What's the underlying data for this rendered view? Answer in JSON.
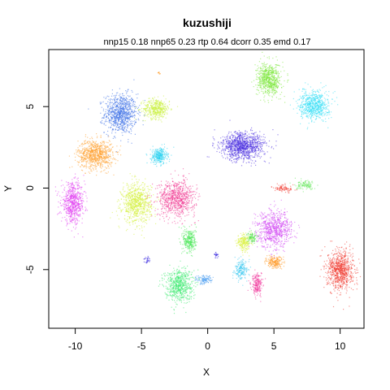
{
  "chart_data": {
    "type": "scatter",
    "title": "kuzushiji",
    "subtitle": "nnp15 0.18 nnp65 0.23 rtp 0.64 dcorr 0.35 emd 0.17",
    "xlabel": "X",
    "ylabel": "Y",
    "xlim": [
      -12,
      11.8
    ],
    "ylim": [
      -8.6,
      8.5
    ],
    "xticks": [
      -10,
      -5,
      0,
      5,
      10
    ],
    "yticks": [
      -5,
      0,
      5
    ],
    "grid": false,
    "legend": "none",
    "clusters": [
      {
        "color": "#3D6FE6",
        "center": [
          -6.6,
          4.6
        ],
        "spread": [
          1.1,
          1.1
        ],
        "n": 900
      },
      {
        "color": "#C8F03C",
        "center": [
          -3.9,
          4.9
        ],
        "spread": [
          0.9,
          0.55
        ],
        "n": 450
      },
      {
        "color": "#FFA030",
        "center": [
          -8.5,
          2.1
        ],
        "spread": [
          1.2,
          0.8
        ],
        "n": 850
      },
      {
        "color": "#28D2F0",
        "center": [
          -3.7,
          2.0
        ],
        "spread": [
          0.55,
          0.45
        ],
        "n": 300
      },
      {
        "color": "#E038F0",
        "center": [
          -10.2,
          -0.9
        ],
        "spread": [
          0.8,
          1.1
        ],
        "n": 650
      },
      {
        "color": "#D4F03A",
        "center": [
          -5.4,
          -0.9
        ],
        "spread": [
          1.0,
          1.1
        ],
        "n": 800
      },
      {
        "color": "#F03590",
        "center": [
          -2.4,
          -0.6
        ],
        "spread": [
          1.3,
          1.0
        ],
        "n": 800
      },
      {
        "color": "#48E858",
        "center": [
          -1.4,
          -3.2
        ],
        "spread": [
          0.45,
          0.7
        ],
        "n": 300
      },
      {
        "color": "#3BEA6E",
        "center": [
          -2.2,
          -5.9
        ],
        "spread": [
          0.95,
          0.9
        ],
        "n": 650
      },
      {
        "color": "#4B9DF0",
        "center": [
          -0.3,
          -5.6
        ],
        "spread": [
          0.6,
          0.25
        ],
        "n": 120
      },
      {
        "color": "#7CE83A",
        "center": [
          4.6,
          6.7
        ],
        "spread": [
          0.8,
          0.9
        ],
        "n": 700
      },
      {
        "color": "#33DEF5",
        "center": [
          8.0,
          5.1
        ],
        "spread": [
          1.0,
          0.8
        ],
        "n": 700
      },
      {
        "color": "#4A2DE0",
        "center": [
          2.6,
          2.6
        ],
        "spread": [
          1.5,
          0.75
        ],
        "n": 1100
      },
      {
        "color": "#66E85C",
        "center": [
          7.4,
          0.2
        ],
        "spread": [
          0.7,
          0.25
        ],
        "n": 120
      },
      {
        "color": "#D040F2",
        "center": [
          5.0,
          -2.5
        ],
        "spread": [
          1.2,
          1.0
        ],
        "n": 750
      },
      {
        "color": "#F03A30",
        "center": [
          10.0,
          -5.0
        ],
        "spread": [
          0.9,
          1.1
        ],
        "n": 850
      },
      {
        "color": "#D8F03A",
        "center": [
          2.7,
          -3.3
        ],
        "spread": [
          0.45,
          0.5
        ],
        "n": 220
      },
      {
        "color": "#3CC8F0",
        "center": [
          2.5,
          -5.0
        ],
        "spread": [
          0.45,
          0.5
        ],
        "n": 200
      },
      {
        "color": "#FF9A2C",
        "center": [
          5.0,
          -4.5
        ],
        "spread": [
          0.55,
          0.35
        ],
        "n": 220
      },
      {
        "color": "#F0349A",
        "center": [
          3.7,
          -5.9
        ],
        "spread": [
          0.4,
          0.6
        ],
        "n": 220
      },
      {
        "color": "#48E040",
        "center": [
          3.3,
          -3.0
        ],
        "spread": [
          0.3,
          0.3
        ],
        "n": 90
      },
      {
        "color": "#3A2AE0",
        "center": [
          -4.6,
          -4.4
        ],
        "spread": [
          0.2,
          0.2
        ],
        "n": 30
      },
      {
        "color": "#3A2AE0",
        "center": [
          0.6,
          -4.1
        ],
        "spread": [
          0.2,
          0.15
        ],
        "n": 25
      },
      {
        "color": "#F03A30",
        "center": [
          5.7,
          0.0
        ],
        "spread": [
          0.7,
          0.2
        ],
        "n": 90
      },
      {
        "color": "#FFA030",
        "center": [
          -3.7,
          7.1
        ],
        "spread": [
          0.08,
          0.1
        ],
        "n": 10
      }
    ]
  }
}
